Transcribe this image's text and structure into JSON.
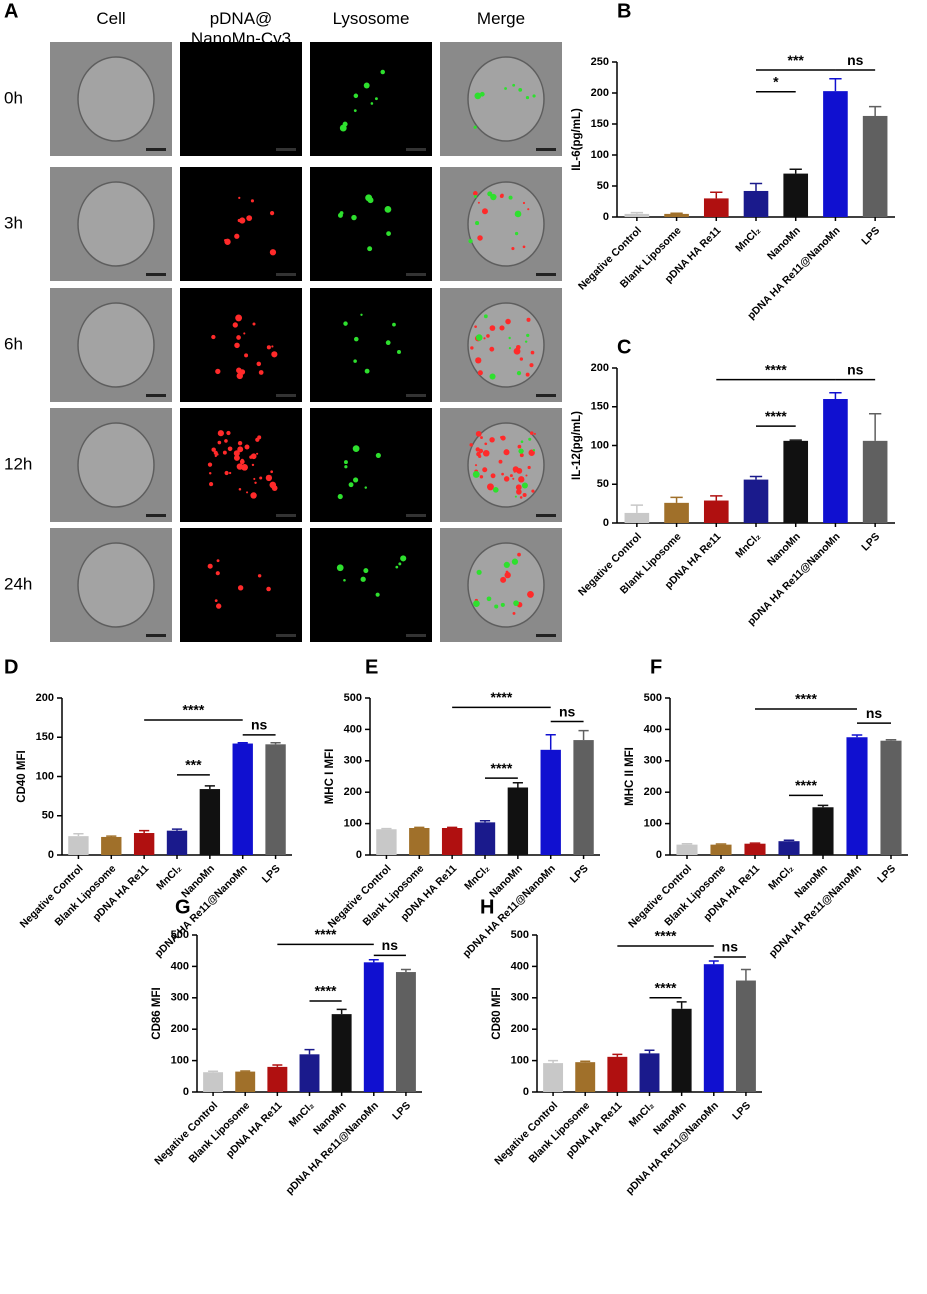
{
  "panel_a": {
    "letter": "A",
    "columns": [
      "Cell",
      "pDNA@\nNanoMn-Cy3",
      "Lysosome",
      "Merge"
    ],
    "rows": [
      "0h",
      "3h",
      "6h",
      "12h",
      "24h"
    ]
  },
  "chart_data": [
    {
      "type": "bar",
      "letter": "B",
      "ylabel": "IL-6(pg/mL)",
      "categories": [
        "Negative Control",
        "Blank Liposome",
        "pDNA HA Re11",
        "MnCl₂",
        "NanoMn",
        "pDNA HA Re11@NanoMn",
        "LPS"
      ],
      "values": [
        5,
        5,
        30,
        42,
        70,
        203,
        163
      ],
      "errors": [
        2,
        1,
        10,
        12,
        7,
        20,
        15
      ],
      "colors": [
        "#c8c8c8",
        "#a0702a",
        "#b01010",
        "#1a1a8c",
        "#111111",
        "#1010d0",
        "#606060"
      ],
      "ylim": [
        0,
        250
      ],
      "yticks": [
        0,
        50,
        100,
        150,
        200,
        250
      ],
      "annotations": [
        {
          "text": "***",
          "categories": [
            3,
            5
          ],
          "y": 237
        },
        {
          "text": "*",
          "categories": [
            3,
            4
          ],
          "y": 202
        },
        {
          "text": "ns",
          "categories": [
            5,
            6
          ],
          "y": 237
        }
      ]
    },
    {
      "type": "bar",
      "letter": "C",
      "ylabel": "IL-12(pg/mL)",
      "categories": [
        "Negative Control",
        "Blank Liposome",
        "pDNA HA Re11",
        "MnCl₂",
        "NanoMn",
        "pDNA HA Re11@NanoMn",
        "LPS"
      ],
      "values": [
        13,
        26,
        29,
        56,
        106,
        160,
        106
      ],
      "errors": [
        10,
        7,
        6,
        4,
        1,
        8,
        35
      ],
      "colors": [
        "#c8c8c8",
        "#a0702a",
        "#b01010",
        "#1a1a8c",
        "#111111",
        "#1010d0",
        "#606060"
      ],
      "ylim": [
        0,
        200
      ],
      "yticks": [
        0,
        50,
        100,
        150,
        200
      ],
      "annotations": [
        {
          "text": "****",
          "categories": [
            2,
            5
          ],
          "y": 185
        },
        {
          "text": "****",
          "categories": [
            3,
            4
          ],
          "y": 125
        },
        {
          "text": "ns",
          "categories": [
            5,
            6
          ],
          "y": 185
        }
      ]
    },
    {
      "type": "bar",
      "letter": "D",
      "ylabel": "CD40 MFI",
      "categories": [
        "Negative Control",
        "Blank Liposome",
        "pDNA HA Re11",
        "MnCl₂",
        "NanoMn",
        "pDNA HA Re11@NanoMn",
        "LPS"
      ],
      "values": [
        24,
        23,
        28,
        31,
        84,
        142,
        141
      ],
      "errors": [
        3,
        1,
        3,
        2,
        4,
        1,
        2
      ],
      "colors": [
        "#c8c8c8",
        "#a0702a",
        "#b01010",
        "#1a1a8c",
        "#111111",
        "#1010d0",
        "#606060"
      ],
      "ylim": [
        0,
        200
      ],
      "yticks": [
        0,
        50,
        100,
        150,
        200
      ],
      "annotations": [
        {
          "text": "****",
          "categories": [
            2,
            5
          ],
          "y": 172
        },
        {
          "text": "***",
          "categories": [
            3,
            4
          ],
          "y": 102
        },
        {
          "text": "ns",
          "categories": [
            5,
            6
          ],
          "y": 153
        }
      ]
    },
    {
      "type": "bar",
      "letter": "E",
      "ylabel": "MHC I MFI",
      "categories": [
        "Negative Control",
        "Blank Liposome",
        "pDNA HA Re11",
        "MnCl₂",
        "NanoMn",
        "pDNA HA Re11@NanoMn",
        "LPS"
      ],
      "values": [
        82,
        86,
        86,
        104,
        215,
        335,
        366
      ],
      "errors": [
        2,
        2,
        2,
        5,
        15,
        48,
        30
      ],
      "colors": [
        "#c8c8c8",
        "#a0702a",
        "#b01010",
        "#1a1a8c",
        "#111111",
        "#1010d0",
        "#606060"
      ],
      "ylim": [
        0,
        500
      ],
      "yticks": [
        0,
        100,
        200,
        300,
        400,
        500
      ],
      "annotations": [
        {
          "text": "****",
          "categories": [
            2,
            5
          ],
          "y": 470
        },
        {
          "text": "****",
          "categories": [
            3,
            4
          ],
          "y": 245
        },
        {
          "text": "ns",
          "categories": [
            5,
            6
          ],
          "y": 425
        }
      ]
    },
    {
      "type": "bar",
      "letter": "F",
      "ylabel": "MHC II MFI",
      "categories": [
        "Negative Control",
        "Blank Liposome",
        "pDNA HA Re11",
        "MnCl₂",
        "NanoMn",
        "pDNA HA Re11@NanoMn",
        "LPS"
      ],
      "values": [
        33,
        33,
        36,
        44,
        152,
        375,
        364
      ],
      "errors": [
        3,
        2,
        2,
        3,
        6,
        7,
        3
      ],
      "colors": [
        "#c8c8c8",
        "#a0702a",
        "#b01010",
        "#1a1a8c",
        "#111111",
        "#1010d0",
        "#606060"
      ],
      "ylim": [
        0,
        500
      ],
      "yticks": [
        0,
        100,
        200,
        300,
        400,
        500
      ],
      "annotations": [
        {
          "text": "****",
          "categories": [
            2,
            5
          ],
          "y": 465
        },
        {
          "text": "****",
          "categories": [
            3,
            4
          ],
          "y": 190
        },
        {
          "text": "ns",
          "categories": [
            5,
            6
          ],
          "y": 420
        }
      ]
    },
    {
      "type": "bar",
      "letter": "G",
      "ylabel": "CD86 MFI",
      "categories": [
        "Negative Control",
        "Blank Liposome",
        "pDNA HA Re11",
        "MnCl₂",
        "NanoMn",
        "pDNA HA Re11@NanoMn",
        "LPS"
      ],
      "values": [
        63,
        65,
        80,
        120,
        248,
        413,
        382
      ],
      "errors": [
        3,
        2,
        6,
        15,
        15,
        8,
        8
      ],
      "colors": [
        "#c8c8c8",
        "#a0702a",
        "#b01010",
        "#1a1a8c",
        "#111111",
        "#1010d0",
        "#606060"
      ],
      "ylim": [
        0,
        500
      ],
      "yticks": [
        0,
        100,
        200,
        300,
        400,
        500
      ],
      "annotations": [
        {
          "text": "****",
          "categories": [
            2,
            5
          ],
          "y": 470
        },
        {
          "text": "****",
          "categories": [
            3,
            4
          ],
          "y": 290
        },
        {
          "text": "ns",
          "categories": [
            5,
            6
          ],
          "y": 435
        }
      ]
    },
    {
      "type": "bar",
      "letter": "H",
      "ylabel": "CD80 MFI",
      "categories": [
        "Negative Control",
        "Blank Liposome",
        "pDNA HA Re11",
        "MnCl₂",
        "NanoMn",
        "pDNA HA Re11@NanoMn",
        "LPS"
      ],
      "values": [
        92,
        95,
        112,
        123,
        265,
        407,
        355
      ],
      "errors": [
        8,
        3,
        8,
        10,
        22,
        10,
        35
      ],
      "colors": [
        "#c8c8c8",
        "#a0702a",
        "#b01010",
        "#1a1a8c",
        "#111111",
        "#1010d0",
        "#606060"
      ],
      "ylim": [
        0,
        500
      ],
      "yticks": [
        0,
        100,
        200,
        300,
        400,
        500
      ],
      "annotations": [
        {
          "text": "****",
          "categories": [
            2,
            5
          ],
          "y": 465
        },
        {
          "text": "****",
          "categories": [
            3,
            4
          ],
          "y": 300
        },
        {
          "text": "ns",
          "categories": [
            5,
            6
          ],
          "y": 430
        }
      ]
    }
  ]
}
